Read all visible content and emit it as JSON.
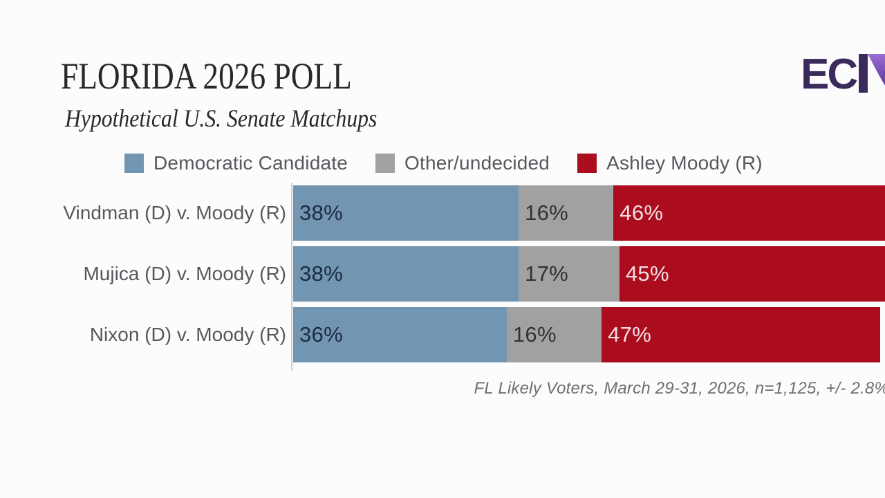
{
  "colors": {
    "background": "#fcfcfd",
    "title-text": "#2a2729",
    "muted-text": "#55585c",
    "footnote-text": "#6d6f72",
    "axis-line": "#cccccc",
    "logo-dark": "#3a2b5c",
    "logo-mid": "#6f46ae",
    "logo-light": "#9a6fd4"
  },
  "header": {
    "title": "FLORIDA 2026 POLL",
    "subtitle": "Hypothetical U.S. Senate Matchups"
  },
  "logo": {
    "visible_text": "EC"
  },
  "chart_data": {
    "type": "bar",
    "orientation": "horizontal",
    "stacked": true,
    "title": "FLORIDA 2026 POLL",
    "subtitle": "Hypothetical U.S. Senate Matchups",
    "categories": [
      "Vindman (D) v. Moody (R)",
      "Mujica (D) v. Moody (R)",
      "Nixon (D) v. Moody (R)"
    ],
    "series": [
      {
        "name": "Democratic Candidate",
        "color": "#7296b1",
        "label_color": "#1c2b45",
        "values": [
          38,
          38,
          36
        ]
      },
      {
        "name": "Other/undecided",
        "color": "#a1a1a2",
        "label_color": "#303234",
        "values": [
          16,
          17,
          16
        ]
      },
      {
        "name": "Ashley Moody (R)",
        "color": "#ab0c1e",
        "label_color": "#f3dfe2",
        "values": [
          46,
          45,
          47
        ]
      }
    ],
    "value_suffix": "%",
    "xlim": [
      0,
      100
    ],
    "grid": false,
    "legend_position": "top",
    "footnote": "FL Likely Voters, March 29-31, 2026, n=1,125, +/- 2.8%"
  }
}
